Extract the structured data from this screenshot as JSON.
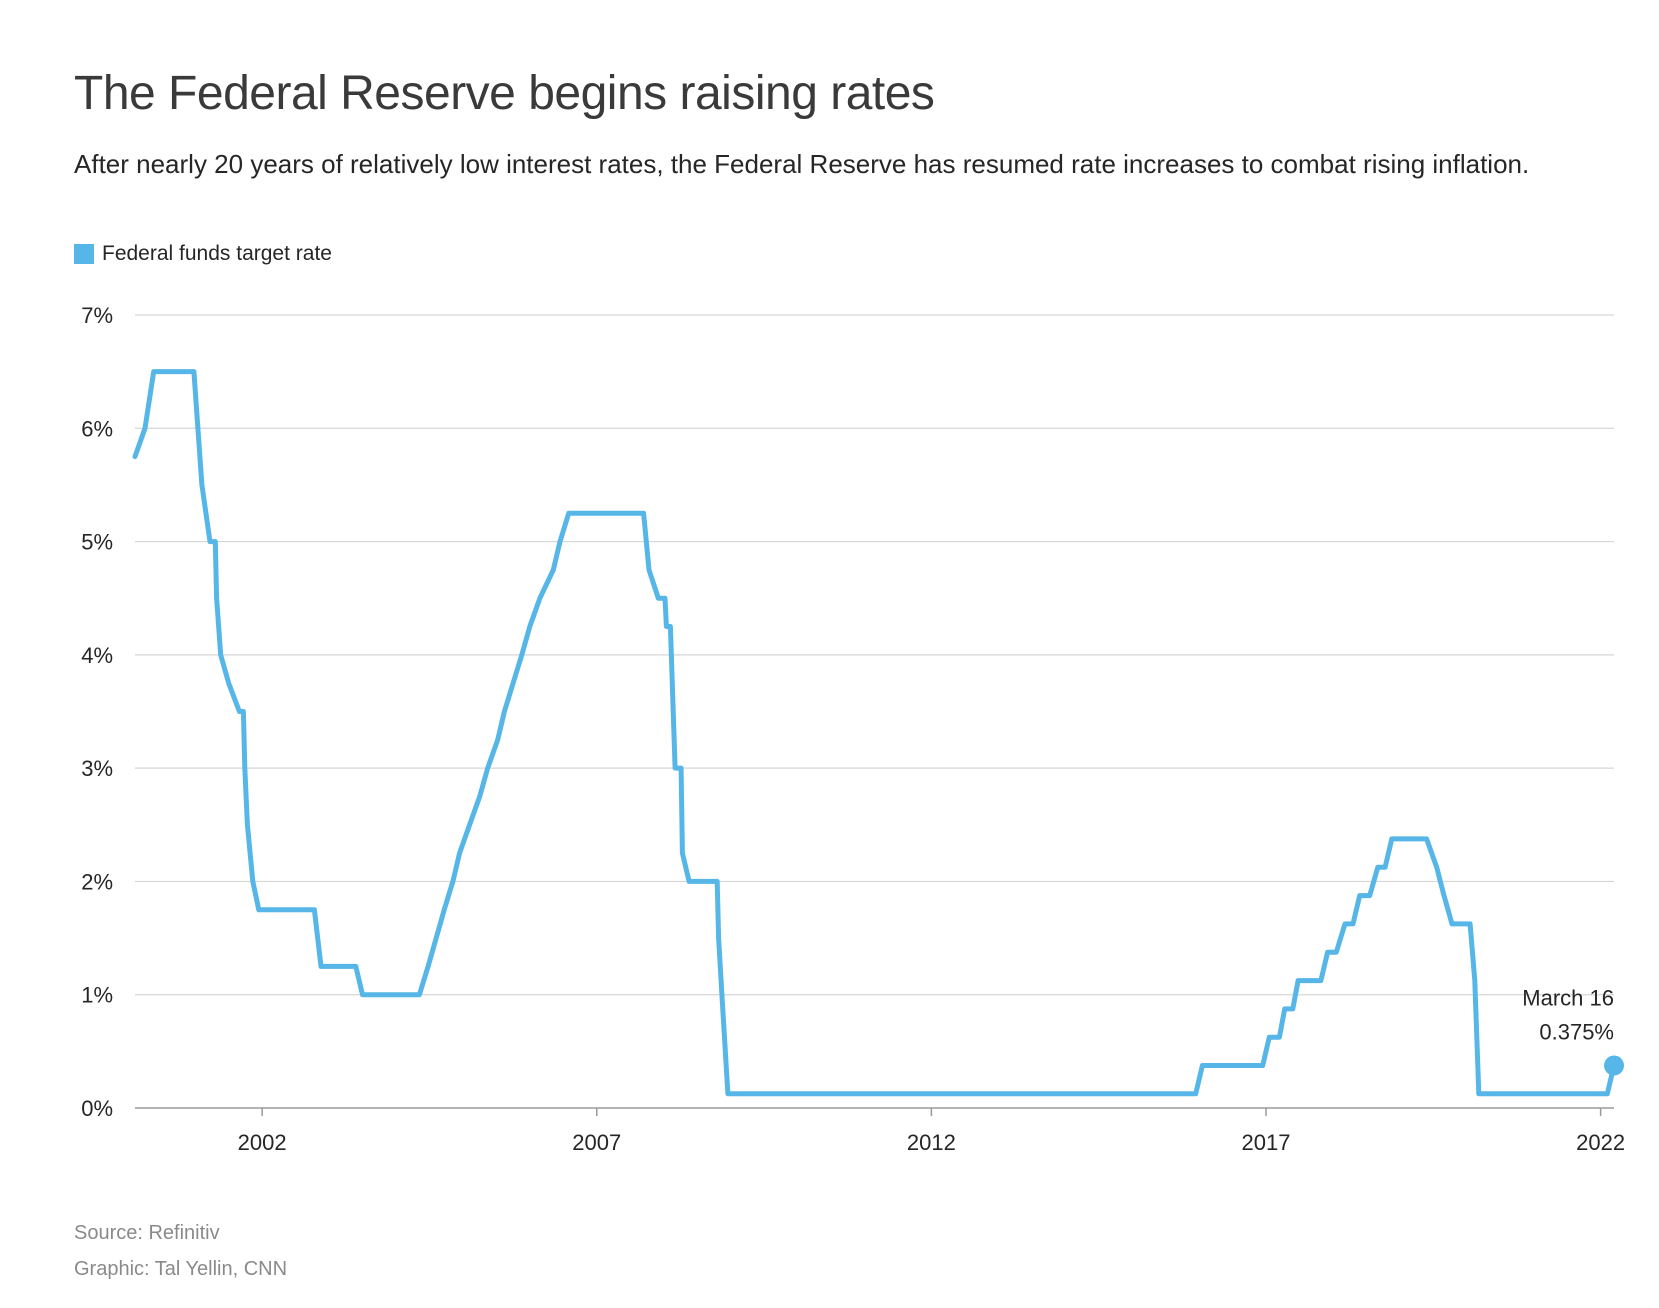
{
  "chart_data": {
    "type": "line",
    "title": "The Federal Reserve begins raising rates",
    "subtitle": "After nearly 20 years of relatively low interest rates, the Federal Reserve has resumed rate increases to combat rising inflation.",
    "legend": [
      {
        "name": "Federal funds target rate",
        "color": "#56b6e8"
      }
    ],
    "xlim": [
      2000.1,
      2022.2
    ],
    "ylim": [
      0,
      7
    ],
    "x_ticks": [
      2002,
      2007,
      2012,
      2017,
      2022
    ],
    "x_tick_labels": [
      "2002",
      "2007",
      "2012",
      "2017",
      "2022"
    ],
    "y_ticks": [
      0,
      1,
      2,
      3,
      4,
      5,
      6,
      7
    ],
    "y_tick_labels": [
      "0%",
      "1%",
      "2%",
      "3%",
      "4%",
      "5%",
      "6%",
      "7%"
    ],
    "grid": true,
    "series": [
      {
        "name": "Federal funds target rate",
        "color": "#56b6e8",
        "points": [
          [
            2000.1,
            5.75
          ],
          [
            2000.25,
            6.0
          ],
          [
            2000.38,
            6.5
          ],
          [
            2000.98,
            6.5
          ],
          [
            2001.04,
            6.0
          ],
          [
            2001.1,
            5.5
          ],
          [
            2001.22,
            5.0
          ],
          [
            2001.3,
            5.0
          ],
          [
            2001.32,
            4.5
          ],
          [
            2001.38,
            4.0
          ],
          [
            2001.5,
            3.75
          ],
          [
            2001.66,
            3.5
          ],
          [
            2001.72,
            3.5
          ],
          [
            2001.74,
            3.0
          ],
          [
            2001.78,
            2.5
          ],
          [
            2001.86,
            2.0
          ],
          [
            2001.95,
            1.75
          ],
          [
            2002.78,
            1.75
          ],
          [
            2002.88,
            1.25
          ],
          [
            2003.4,
            1.25
          ],
          [
            2003.5,
            1.0
          ],
          [
            2004.35,
            1.0
          ],
          [
            2004.48,
            1.25
          ],
          [
            2004.6,
            1.5
          ],
          [
            2004.72,
            1.75
          ],
          [
            2004.85,
            2.0
          ],
          [
            2004.95,
            2.25
          ],
          [
            2005.1,
            2.5
          ],
          [
            2005.25,
            2.75
          ],
          [
            2005.37,
            3.0
          ],
          [
            2005.52,
            3.25
          ],
          [
            2005.62,
            3.5
          ],
          [
            2005.75,
            3.75
          ],
          [
            2005.88,
            4.0
          ],
          [
            2006.0,
            4.25
          ],
          [
            2006.15,
            4.5
          ],
          [
            2006.35,
            4.75
          ],
          [
            2006.45,
            5.0
          ],
          [
            2006.58,
            5.25
          ],
          [
            2007.7,
            5.25
          ],
          [
            2007.78,
            4.75
          ],
          [
            2007.92,
            4.5
          ],
          [
            2008.02,
            4.5
          ],
          [
            2008.04,
            4.25
          ],
          [
            2008.1,
            4.25
          ],
          [
            2008.17,
            3.0
          ],
          [
            2008.26,
            3.0
          ],
          [
            2008.28,
            2.25
          ],
          [
            2008.38,
            2.0
          ],
          [
            2008.8,
            2.0
          ],
          [
            2008.82,
            1.5
          ],
          [
            2008.87,
            1.0
          ],
          [
            2008.96,
            0.125
          ],
          [
            2015.95,
            0.125
          ],
          [
            2016.05,
            0.375
          ],
          [
            2016.95,
            0.375
          ],
          [
            2017.05,
            0.625
          ],
          [
            2017.2,
            0.625
          ],
          [
            2017.28,
            0.875
          ],
          [
            2017.4,
            0.875
          ],
          [
            2017.48,
            1.125
          ],
          [
            2017.82,
            1.125
          ],
          [
            2017.92,
            1.375
          ],
          [
            2018.05,
            1.375
          ],
          [
            2018.18,
            1.625
          ],
          [
            2018.3,
            1.625
          ],
          [
            2018.4,
            1.875
          ],
          [
            2018.55,
            1.875
          ],
          [
            2018.67,
            2.125
          ],
          [
            2018.78,
            2.125
          ],
          [
            2018.88,
            2.375
          ],
          [
            2019.4,
            2.375
          ],
          [
            2019.55,
            2.125
          ],
          [
            2019.66,
            1.875
          ],
          [
            2019.78,
            1.625
          ],
          [
            2020.05,
            1.625
          ],
          [
            2020.12,
            1.125
          ],
          [
            2020.18,
            0.125
          ],
          [
            2022.1,
            0.125
          ],
          [
            2022.2,
            0.375
          ]
        ]
      }
    ],
    "annotation": {
      "label_line1": "March 16",
      "label_line2": "0.375%",
      "x": 2022.2,
      "y": 0.375
    }
  },
  "footer": {
    "source": "Source: Refinitiv",
    "credit": "Graphic: Tal Yellin, CNN"
  }
}
